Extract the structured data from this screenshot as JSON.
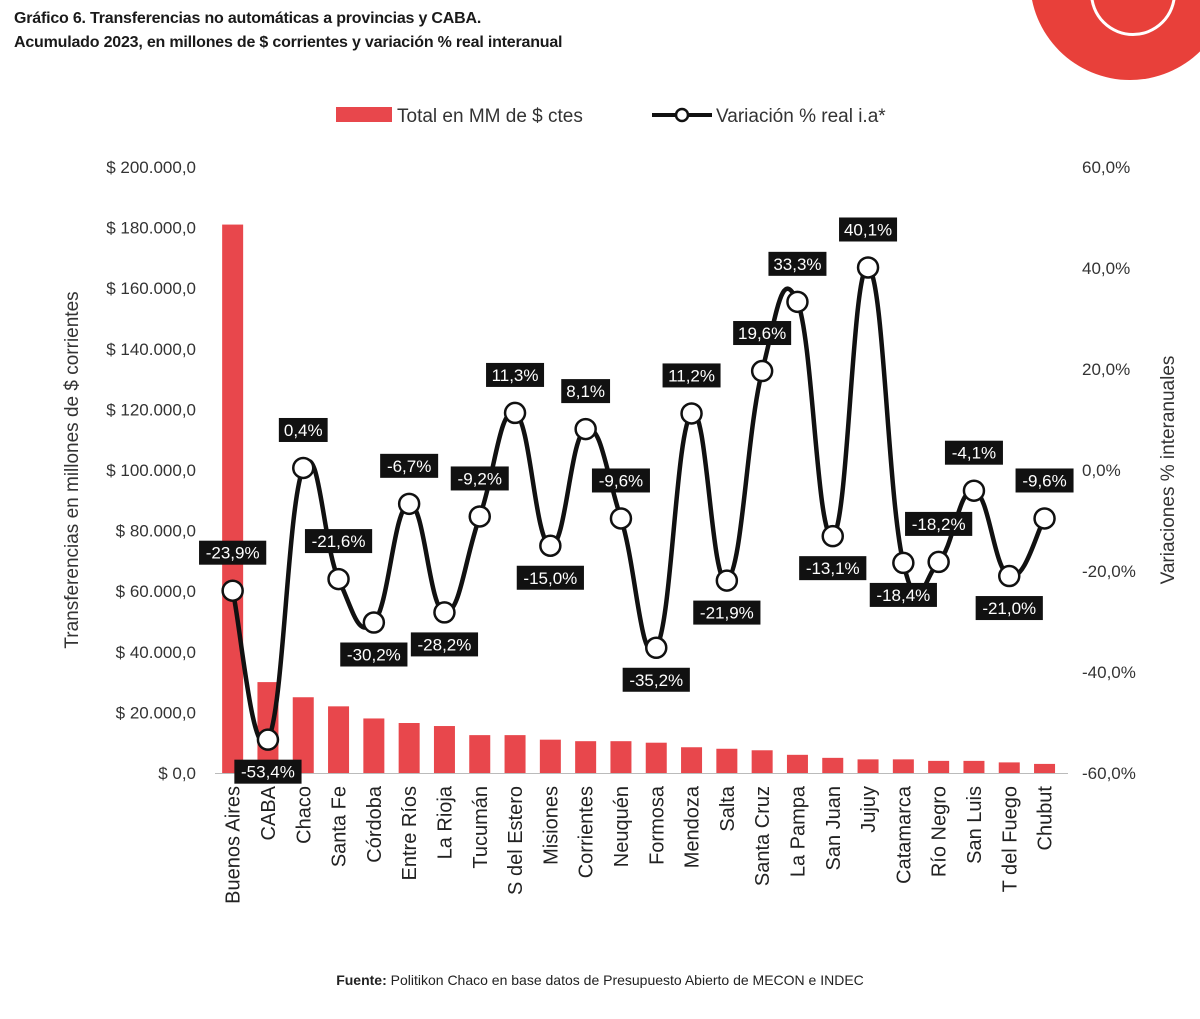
{
  "header": {
    "title_line1": "Gráfico 6. Transferencias no automáticas a provincias y CABA.",
    "title_line2": "Acumulado 2023, en millones de $ corrientes y variación % real interanual"
  },
  "footer": {
    "source_label": "Fuente:",
    "source_text": " Politikon Chaco en base datos de Presupuesto Abierto de MECON e INDEC"
  },
  "colors": {
    "bar": "#e8474c",
    "line": "#111111",
    "label_bg": "#111111",
    "label_text": "#ffffff",
    "brand": "#e8403a"
  },
  "chart_data": {
    "type": "bar+line",
    "legend": {
      "bar_label": "Total en MM de $ ctes",
      "line_label": "Variación % real i.a*",
      "position": "top-center"
    },
    "ylabel_left": "Transferencias en millones de $ corrientes",
    "ylabel_right": "Variaciones % interanuales",
    "ylim_left": [
      0,
      200000
    ],
    "ylim_right": [
      -60,
      60
    ],
    "left_ticks": [
      "$ 0,0",
      "$ 20.000,0",
      "$ 40.000,0",
      "$ 60.000,0",
      "$ 80.000,0",
      "$ 100.000,0",
      "$ 120.000,0",
      "$ 140.000,0",
      "$ 160.000,0",
      "$ 180.000,0",
      "$ 200.000,0"
    ],
    "left_tick_values": [
      0,
      20000,
      40000,
      60000,
      80000,
      100000,
      120000,
      140000,
      160000,
      180000,
      200000
    ],
    "right_ticks": [
      "-60,0%",
      "-40,0%",
      "-20,0%",
      "0,0%",
      "20,0%",
      "40,0%",
      "60,0%"
    ],
    "right_tick_values": [
      -60,
      -40,
      -20,
      0,
      20,
      40,
      60
    ],
    "categories": [
      "Buenos Aires",
      "CABA",
      "Chaco",
      "Santa Fe",
      "Córdoba",
      "Entre Ríos",
      "La Rioja",
      "Tucumán",
      "S del Estero",
      "Misiones",
      "Corrientes",
      "Neuquén",
      "Formosa",
      "Mendoza",
      "Salta",
      "Santa Cruz",
      "La Pampa",
      "San Juan",
      "Jujuy",
      "Catamarca",
      "Río Negro",
      "San Luis",
      "T del Fuego",
      "Chubut"
    ],
    "bar_values": [
      181000,
      30000,
      25000,
      22000,
      18000,
      16500,
      15500,
      12500,
      12500,
      11000,
      10500,
      10500,
      10000,
      8500,
      8000,
      7500,
      6000,
      5000,
      4500,
      4500,
      4000,
      4000,
      3500,
      3000
    ],
    "line_values": [
      -23.9,
      -53.4,
      0.4,
      -21.6,
      -30.2,
      -6.7,
      -28.2,
      -9.2,
      11.3,
      -15.0,
      8.1,
      -9.6,
      -35.2,
      11.2,
      -21.9,
      19.6,
      33.3,
      -13.1,
      40.1,
      -18.4,
      -18.2,
      -4.1,
      -21.0,
      -9.6
    ],
    "line_labels": [
      "-23,9%",
      "-53,4%",
      "0,4%",
      "-21,6%",
      "-30,2%",
      "-6,7%",
      "-28,2%",
      "-9,2%",
      "11,3%",
      "-15,0%",
      "8,1%",
      "-9,6%",
      "-35,2%",
      "11,2%",
      "-21,9%",
      "19,6%",
      "33,3%",
      "-13,1%",
      "40,1%",
      "-18,4%",
      "-18,2%",
      "-4,1%",
      "-21,0%",
      "-9,6%"
    ]
  }
}
